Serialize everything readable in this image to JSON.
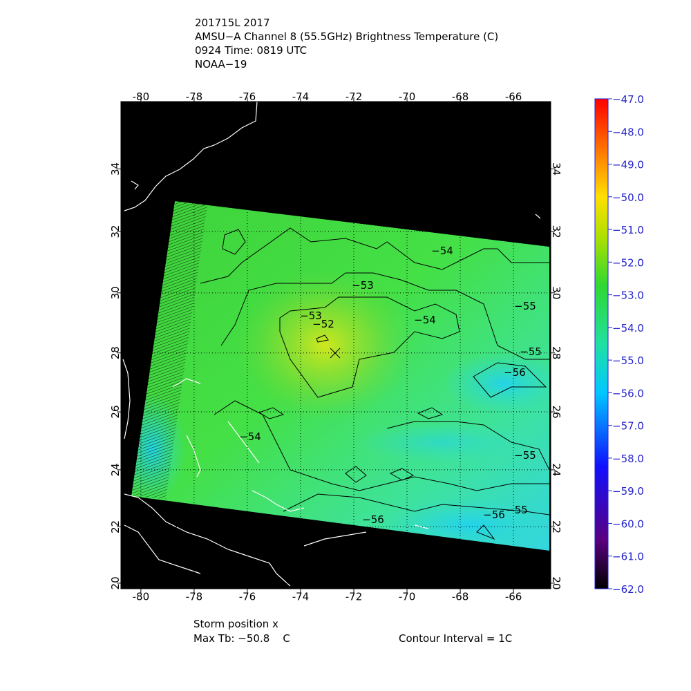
{
  "header": {
    "lines": [
      "201715L 2017",
      "AMSU−A Channel 8 (55.5GHz) Brightness Temperature (C)",
      "0924 Time: 0819 UTC",
      "NOAA−19"
    ]
  },
  "map": {
    "xlim": [
      -80.75,
      -64.6
    ],
    "ylim": [
      19.8,
      36.1
    ],
    "projection": "mercator",
    "xticks": [
      -80,
      -78,
      -76,
      -74,
      -72,
      -70,
      -68,
      -66
    ],
    "yticks": [
      20,
      22,
      24,
      26,
      28,
      30,
      32,
      34
    ],
    "grid": true,
    "contour_labels": [
      "−54",
      "−53",
      "−53",
      "−52",
      "−54",
      "−55",
      "−55",
      "−56",
      "−54",
      "−55",
      "−56",
      "−55",
      "−56"
    ]
  },
  "colorbar": {
    "lim": [
      -62,
      -47
    ],
    "ticks": [
      {
        "value": -47,
        "label": "−47.0"
      },
      {
        "value": -48,
        "label": "−48.0"
      },
      {
        "value": -49,
        "label": "−49.0"
      },
      {
        "value": -50,
        "label": "−50.0"
      },
      {
        "value": -51,
        "label": "−51.0"
      },
      {
        "value": -52,
        "label": "−52.0"
      },
      {
        "value": -53,
        "label": "−53.0"
      },
      {
        "value": -54,
        "label": "−54.0"
      },
      {
        "value": -55,
        "label": "−55.0"
      },
      {
        "value": -56,
        "label": "−56.0"
      },
      {
        "value": -57,
        "label": "−57.0"
      },
      {
        "value": -58,
        "label": "−58.0"
      },
      {
        "value": -59,
        "label": "−59.0"
      },
      {
        "value": -60,
        "label": "−60.0"
      },
      {
        "value": -61,
        "label": "−61.0"
      },
      {
        "value": -62,
        "label": "−62.0"
      }
    ]
  },
  "footer": {
    "storm": "Storm position x",
    "max_tb": "Max Tb: −50.8    C",
    "contour_interval": "Contour Interval = 1C"
  }
}
